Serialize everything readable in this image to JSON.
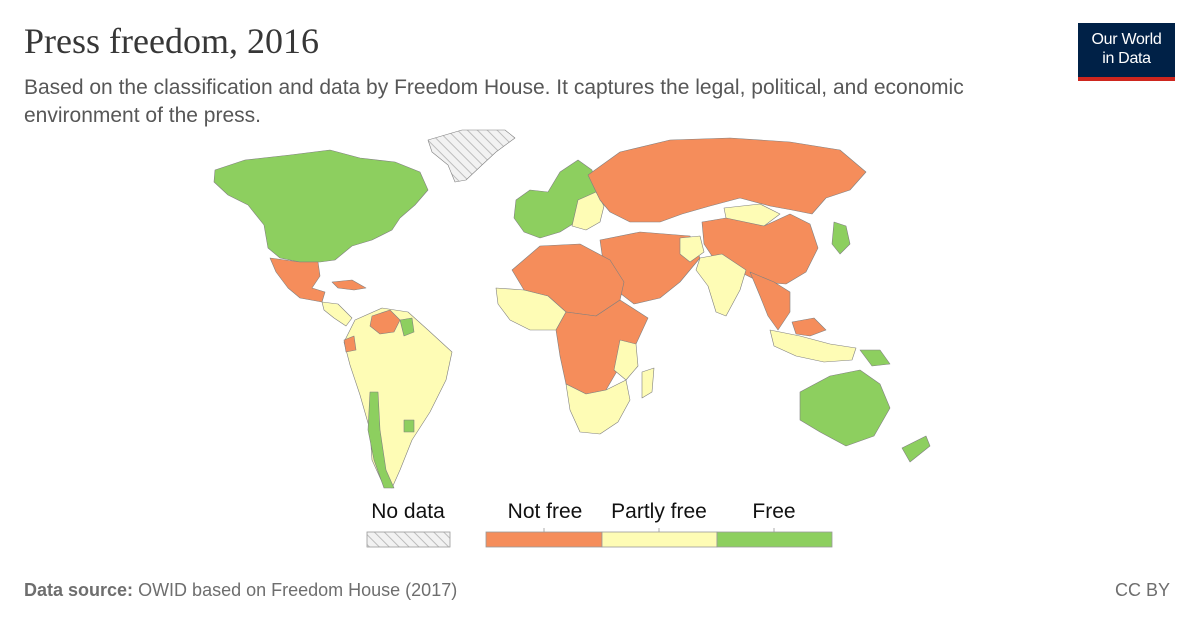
{
  "header": {
    "title": "Press freedom, 2016",
    "subtitle": "Based on the classification and data by Freedom House. It captures the legal, political, and economic environment of the press."
  },
  "logo": {
    "line1": "Our World",
    "line2": "in Data"
  },
  "legend": {
    "no_data_label": "No data",
    "categories": [
      {
        "label": "Not free",
        "color": "#f58d5b"
      },
      {
        "label": "Partly free",
        "color": "#fefcb5"
      },
      {
        "label": "Free",
        "color": "#8dcf5f"
      }
    ]
  },
  "colors": {
    "not_free": "#f58d5b",
    "partly_free": "#fefcb5",
    "free": "#8dcf5f",
    "no_data": "#e6e6e6",
    "border": "#808080"
  },
  "footer": {
    "source_label": "Data source:",
    "source_text": "OWID based on Freedom House (2017)",
    "license": "CC BY"
  }
}
